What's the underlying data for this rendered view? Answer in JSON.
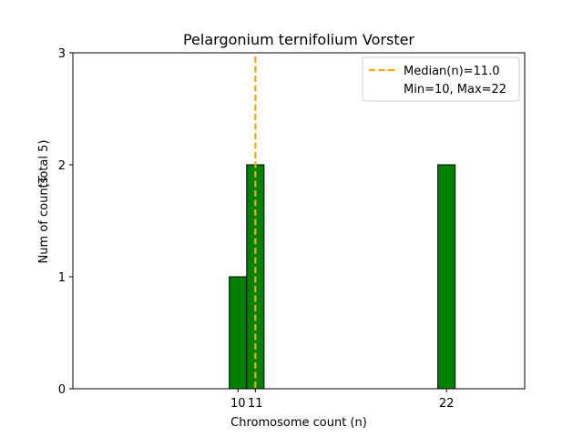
{
  "chart_data": {
    "type": "bar",
    "title": "Pelargonium ternifolium Vorster",
    "xlabel": "Chromosome count (n)",
    "ylabel": "Num of counts",
    "ylabel_total": "(Total 5)",
    "bars": [
      {
        "x": 10,
        "value": 1
      },
      {
        "x": 11,
        "value": 2
      },
      {
        "x": 22,
        "value": 2
      }
    ],
    "bar_width": 1,
    "xlim": [
      0.5,
      26.5
    ],
    "ylim": [
      0,
      3
    ],
    "xticks": [
      10,
      11,
      22
    ],
    "yticks": [
      0,
      1,
      2,
      3
    ],
    "median": 11.0,
    "bar_color": "#008000",
    "median_color": "#FFA500",
    "legend": {
      "position": "top-right",
      "median_label": "Median(n)=11.0",
      "minmax_label": "Min=10, Max=22"
    }
  }
}
